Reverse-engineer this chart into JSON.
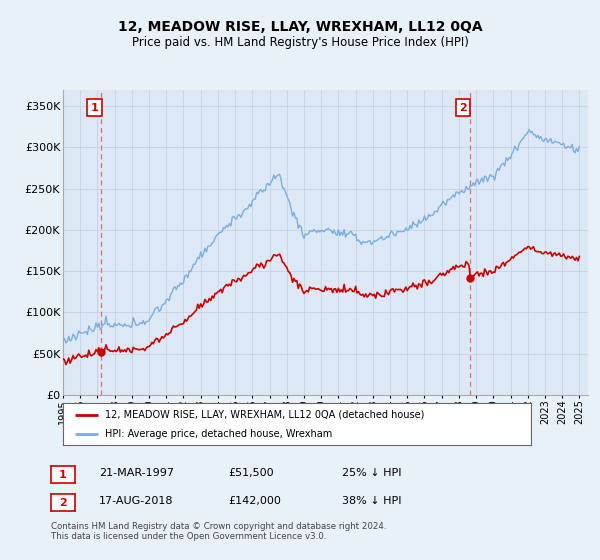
{
  "title": "12, MEADOW RISE, LLAY, WREXHAM, LL12 0QA",
  "subtitle": "Price paid vs. HM Land Registry's House Price Index (HPI)",
  "background_color": "#e8f0f8",
  "plot_bg_color": "#dce8f5",
  "legend_label_red": "12, MEADOW RISE, LLAY, WREXHAM, LL12 0QA (detached house)",
  "legend_label_blue": "HPI: Average price, detached house, Wrexham",
  "transaction1_date": "21-MAR-1997",
  "transaction1_price": "£51,500",
  "transaction1_hpi": "25% ↓ HPI",
  "transaction2_date": "17-AUG-2018",
  "transaction2_price": "£142,000",
  "transaction2_hpi": "38% ↓ HPI",
  "footer": "Contains HM Land Registry data © Crown copyright and database right 2024.\nThis data is licensed under the Open Government Licence v3.0.",
  "ylim": [
    0,
    370000
  ],
  "yticks": [
    0,
    50000,
    100000,
    150000,
    200000,
    250000,
    300000,
    350000
  ],
  "ytick_labels": [
    "£0",
    "£50K",
    "£100K",
    "£150K",
    "£200K",
    "£250K",
    "£300K",
    "£350K"
  ],
  "xmin": 1995,
  "xmax": 2025.5,
  "marker1_year": 1997.22,
  "marker1_value": 51500,
  "marker2_year": 2018.63,
  "marker2_value": 142000,
  "red_color": "#cc0000",
  "blue_color": "#7aade0",
  "dashed_color": "#e07070",
  "grid_color": "#c0cfe0"
}
